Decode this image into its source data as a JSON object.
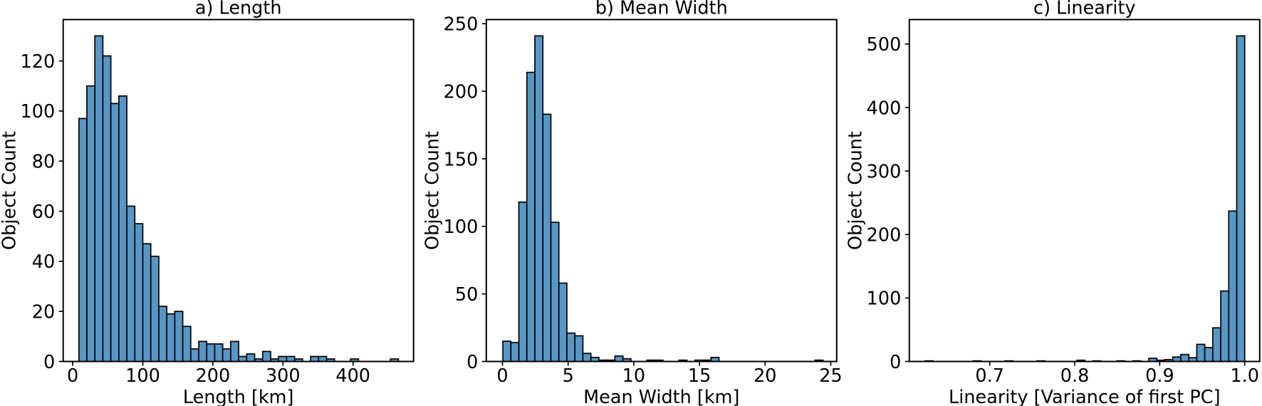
{
  "figure": {
    "background": "#ffffff",
    "bar_fill_color": "#5797c6",
    "bar_edge_color": "#000000",
    "axis_color": "#000000",
    "text_color": "#000000"
  },
  "chart_data": [
    {
      "type": "bar",
      "subtype": "histogram",
      "title": "a) Length",
      "xlabel": "Length [km]",
      "ylabel": "Object Count",
      "bin_start": 8.8,
      "bin_width": 11.4,
      "counts": [
        97,
        110,
        130,
        122,
        103,
        106,
        62,
        55,
        47,
        42,
        22,
        19,
        20,
        14,
        5,
        8,
        7,
        7,
        5,
        8,
        2,
        3,
        1,
        4,
        1,
        2,
        2,
        1,
        0,
        2,
        2,
        1,
        0,
        0,
        1,
        0,
        0,
        0,
        0,
        1
      ],
      "xticks": [
        0,
        100,
        200,
        300,
        400
      ],
      "xtick_labels": [
        "0",
        "100",
        "200",
        "300",
        "400"
      ],
      "yticks": [
        0,
        20,
        40,
        60,
        80,
        100,
        120
      ],
      "ytick_labels": [
        "0",
        "20",
        "40",
        "60",
        "80",
        "100",
        "120"
      ],
      "xlim": [
        -13.62,
        486.38
      ],
      "ylim": [
        0,
        136.5
      ],
      "grid": false,
      "legend": false
    },
    {
      "type": "bar",
      "subtype": "histogram",
      "title": "b) Mean Width",
      "xlabel": "Mean Width [km]",
      "ylabel": "Object Count",
      "bin_start": 0.03,
      "bin_width": 0.6095,
      "counts": [
        15,
        14,
        118,
        214,
        241,
        183,
        103,
        58,
        21,
        19,
        6,
        3,
        1,
        1,
        4,
        2,
        0,
        0,
        1,
        1,
        0,
        0,
        1,
        0,
        1,
        1,
        3,
        0,
        0,
        0,
        0,
        0,
        0,
        0,
        0,
        0,
        0,
        0,
        0,
        1
      ],
      "xticks": [
        0,
        5,
        10,
        15,
        20,
        25
      ],
      "xtick_labels": [
        "0",
        "5",
        "10",
        "15",
        "20",
        "25"
      ],
      "yticks": [
        0,
        50,
        100,
        150,
        200,
        250
      ],
      "ytick_labels": [
        "0",
        "50",
        "100",
        "150",
        "200",
        "250"
      ],
      "xlim": [
        -1.231,
        25.449
      ],
      "ylim": [
        0,
        253.05
      ],
      "grid": false,
      "legend": false
    },
    {
      "type": "bar",
      "subtype": "histogram",
      "title": "c) Linearity",
      "xlabel": "Linearity [Variance of first PC]",
      "ylabel": "Object Count",
      "bin_start": 0.624,
      "bin_width": 0.0094,
      "counts": [
        1,
        0,
        0,
        0,
        0,
        0,
        1,
        0,
        0,
        0,
        1,
        0,
        0,
        0,
        1,
        0,
        0,
        0,
        0,
        2,
        0,
        1,
        0,
        0,
        1,
        0,
        1,
        0,
        5,
        2,
        3,
        7,
        11,
        6,
        27,
        22,
        53,
        111,
        237,
        513
      ],
      "xticks": [
        0.7,
        0.8,
        0.9,
        1.0
      ],
      "xtick_labels": [
        "0.7",
        "0.8",
        "0.9",
        "1.0"
      ],
      "yticks": [
        0,
        100,
        200,
        300,
        400,
        500
      ],
      "ytick_labels": [
        "0",
        "100",
        "200",
        "300",
        "400",
        "500"
      ],
      "xlim": [
        0.6054,
        1.01764
      ],
      "ylim": [
        0,
        538.65
      ],
      "grid": false,
      "legend": false
    }
  ]
}
